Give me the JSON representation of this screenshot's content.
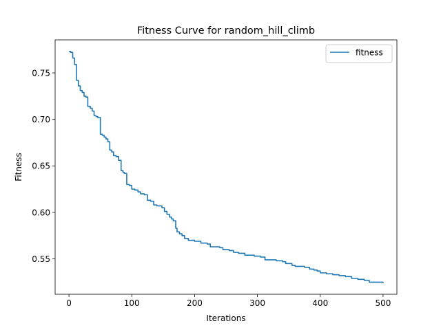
{
  "chart_data": {
    "type": "line",
    "title": "Fitness Curve for random_hill_climb",
    "xlabel": "Iterations",
    "ylabel": "Fitness",
    "xlim": [
      -22,
      522
    ],
    "ylim": [
      0.512,
      0.7855
    ],
    "xticks": [
      0,
      100,
      200,
      300,
      400,
      500
    ],
    "xtick_labels": [
      "0",
      "100",
      "200",
      "300",
      "400",
      "500"
    ],
    "yticks": [
      0.55,
      0.6,
      0.65,
      0.7,
      0.75
    ],
    "ytick_labels": [
      "0.55",
      "0.60",
      "0.65",
      "0.70",
      "0.75"
    ],
    "grid": false,
    "legend_position": "top-right",
    "series": [
      {
        "name": "fitness",
        "color": "#1f77b4",
        "step": true,
        "points": [
          [
            0,
            0.773
          ],
          [
            3,
            0.772
          ],
          [
            6,
            0.766
          ],
          [
            9,
            0.759
          ],
          [
            12,
            0.742
          ],
          [
            15,
            0.736
          ],
          [
            18,
            0.731
          ],
          [
            21,
            0.729
          ],
          [
            24,
            0.725
          ],
          [
            27,
            0.724
          ],
          [
            30,
            0.714
          ],
          [
            34,
            0.712
          ],
          [
            37,
            0.709
          ],
          [
            40,
            0.704
          ],
          [
            43,
            0.703
          ],
          [
            46,
            0.702
          ],
          [
            50,
            0.684
          ],
          [
            53,
            0.683
          ],
          [
            56,
            0.681
          ],
          [
            59,
            0.679
          ],
          [
            62,
            0.676
          ],
          [
            65,
            0.667
          ],
          [
            68,
            0.665
          ],
          [
            71,
            0.661
          ],
          [
            75,
            0.66
          ],
          [
            79,
            0.656
          ],
          [
            83,
            0.645
          ],
          [
            86,
            0.643
          ],
          [
            88,
            0.642
          ],
          [
            92,
            0.63
          ],
          [
            96,
            0.629
          ],
          [
            100,
            0.625
          ],
          [
            105,
            0.624
          ],
          [
            110,
            0.622
          ],
          [
            114,
            0.62
          ],
          [
            120,
            0.619
          ],
          [
            125,
            0.613
          ],
          [
            130,
            0.612
          ],
          [
            135,
            0.608
          ],
          [
            140,
            0.607
          ],
          [
            148,
            0.605
          ],
          [
            152,
            0.601
          ],
          [
            156,
            0.598
          ],
          [
            160,
            0.595
          ],
          [
            163,
            0.593
          ],
          [
            166,
            0.591
          ],
          [
            170,
            0.583
          ],
          [
            172,
            0.579
          ],
          [
            176,
            0.577
          ],
          [
            180,
            0.575
          ],
          [
            184,
            0.572
          ],
          [
            190,
            0.57
          ],
          [
            200,
            0.569
          ],
          [
            210,
            0.567
          ],
          [
            220,
            0.566
          ],
          [
            225,
            0.563
          ],
          [
            240,
            0.562
          ],
          [
            245,
            0.56
          ],
          [
            255,
            0.559
          ],
          [
            262,
            0.557
          ],
          [
            270,
            0.556
          ],
          [
            280,
            0.554
          ],
          [
            295,
            0.553
          ],
          [
            305,
            0.552
          ],
          [
            312,
            0.549
          ],
          [
            330,
            0.548
          ],
          [
            340,
            0.547
          ],
          [
            345,
            0.545
          ],
          [
            355,
            0.543
          ],
          [
            360,
            0.542
          ],
          [
            375,
            0.541
          ],
          [
            383,
            0.539
          ],
          [
            390,
            0.538
          ],
          [
            395,
            0.537
          ],
          [
            400,
            0.535
          ],
          [
            410,
            0.534
          ],
          [
            420,
            0.533
          ],
          [
            430,
            0.532
          ],
          [
            440,
            0.531
          ],
          [
            450,
            0.529
          ],
          [
            460,
            0.528
          ],
          [
            470,
            0.527
          ],
          [
            478,
            0.525
          ],
          [
            490,
            0.525
          ],
          [
            500,
            0.524
          ]
        ]
      }
    ]
  }
}
